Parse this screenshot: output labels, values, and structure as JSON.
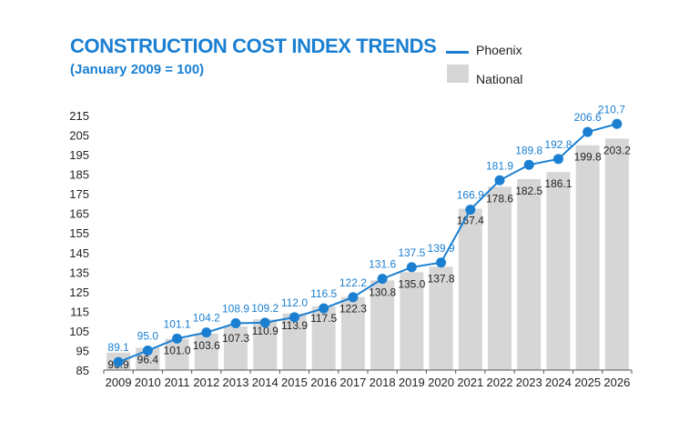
{
  "chart_data": {
    "type": "bar+line",
    "title": "CONSTRUCTION COST INDEX TRENDS",
    "subtitle": "(January 2009 = 100)",
    "categories": [
      "2009",
      "2010",
      "2011",
      "2012",
      "2013",
      "2014",
      "2015",
      "2016",
      "2017",
      "2018",
      "2019",
      "2020",
      "2021",
      "2022",
      "2023",
      "2024",
      "2025",
      "2026"
    ],
    "yticks": [
      85,
      95,
      105,
      115,
      125,
      135,
      145,
      155,
      165,
      175,
      185,
      195,
      205,
      215
    ],
    "ylim": [
      85,
      215
    ],
    "series": [
      {
        "name": "National",
        "type": "bar",
        "color": "#d6d6d6",
        "values": [
          93.9,
          96.4,
          101.0,
          103.6,
          107.3,
          110.9,
          113.9,
          117.5,
          122.3,
          130.8,
          135.0,
          137.8,
          167.4,
          178.6,
          182.5,
          186.1,
          199.8,
          203.2
        ],
        "labels": [
          "93.9",
          "96.4",
          "101.0",
          "103.6",
          "107.3",
          "110.9",
          "113.9",
          "117.5",
          "122.3",
          "130.8",
          "135.0",
          "137.8",
          "167.4",
          "178.6",
          "182.5",
          "186.1",
          "199.8",
          "203.2"
        ]
      },
      {
        "name": "Phoenix",
        "type": "line",
        "color": "#1a7fd1",
        "values": [
          89.1,
          95.0,
          101.1,
          104.2,
          108.9,
          109.2,
          112.0,
          116.5,
          122.2,
          131.6,
          137.5,
          139.9,
          166.9,
          181.9,
          189.8,
          192.8,
          206.6,
          210.7
        ],
        "labels": [
          "89.1",
          "95.0",
          "101.1",
          "104.2",
          "108.9",
          "109.2",
          "112.0",
          "116.5",
          "122.2",
          "131.6",
          "137.5",
          "139.9",
          "166.9",
          "181.9",
          "189.8",
          "192.8",
          "206.6",
          "210.7"
        ]
      }
    ],
    "legend": {
      "position": "top-right",
      "items": [
        "Phoenix",
        "National"
      ]
    },
    "grid": false
  }
}
